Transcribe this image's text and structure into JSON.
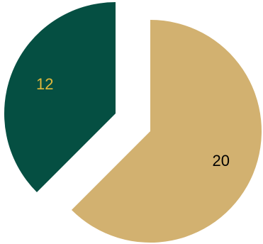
{
  "chart_data": {
    "type": "pie",
    "exploded": true,
    "slices": [
      {
        "value": 20,
        "label": "20",
        "color": "#D2B170",
        "label_color": "#000000"
      },
      {
        "value": 12,
        "label": "12",
        "color": "#054F42",
        "label_color": "#E2B93B"
      }
    ],
    "start_angle_deg": 0,
    "direction": "clockwise",
    "legend": "none"
  }
}
